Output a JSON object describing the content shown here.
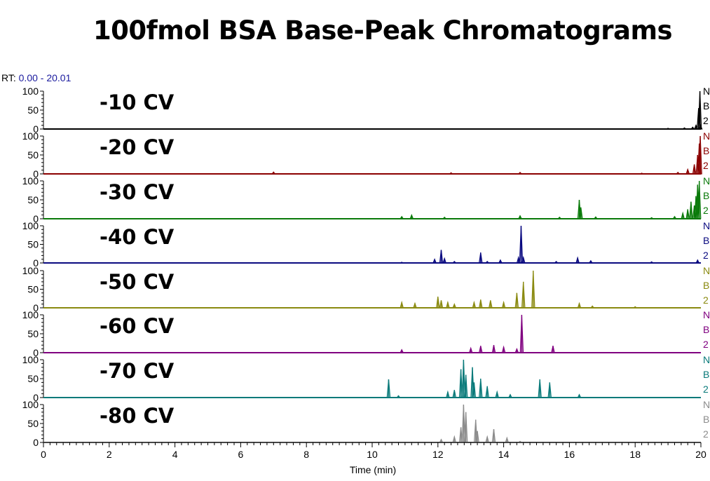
{
  "chart_data": {
    "type": "line",
    "title": "100fmol BSA Base-Peak Chromatograms",
    "rt_prefix": "RT:",
    "rt_range": "0.00 - 20.01",
    "xlabel": "Time (min)",
    "xlim": [
      0,
      20
    ],
    "x_ticks": [
      "0",
      "2",
      "4",
      "6",
      "8",
      "10",
      "12",
      "14",
      "16",
      "18",
      "20"
    ],
    "ylim": [
      0,
      100
    ],
    "y_ticks": [
      "0",
      "50",
      "100"
    ],
    "series": [
      {
        "name": "-10 CV",
        "color": "#000000",
        "side_labels": [
          "N",
          "B",
          "2"
        ],
        "peaks": [
          [
            19.0,
            2
          ],
          [
            19.5,
            3
          ],
          [
            19.75,
            5
          ],
          [
            19.85,
            10
          ],
          [
            19.93,
            55
          ],
          [
            19.97,
            100
          ],
          [
            19.99,
            10
          ]
        ]
      },
      {
        "name": "-20 CV",
        "color": "#8b0000",
        "side_labels": [
          "N",
          "B",
          "2"
        ],
        "peaks": [
          [
            7.0,
            5
          ],
          [
            12.4,
            3
          ],
          [
            14.5,
            4
          ],
          [
            18.2,
            2
          ],
          [
            19.3,
            4
          ],
          [
            19.6,
            12
          ],
          [
            19.8,
            25
          ],
          [
            19.9,
            50
          ],
          [
            19.95,
            80
          ],
          [
            19.98,
            100
          ]
        ]
      },
      {
        "name": "-30 CV",
        "color": "#0a7a0a",
        "side_labels": [
          "N",
          "B",
          "2"
        ],
        "peaks": [
          [
            10.9,
            6
          ],
          [
            11.2,
            10
          ],
          [
            12.2,
            4
          ],
          [
            14.5,
            8
          ],
          [
            15.7,
            4
          ],
          [
            16.3,
            50
          ],
          [
            16.35,
            30
          ],
          [
            16.8,
            5
          ],
          [
            18.5,
            3
          ],
          [
            19.2,
            6
          ],
          [
            19.45,
            15
          ],
          [
            19.6,
            25
          ],
          [
            19.7,
            45
          ],
          [
            19.8,
            35
          ],
          [
            19.85,
            60
          ],
          [
            19.9,
            90
          ],
          [
            19.95,
            100
          ]
        ]
      },
      {
        "name": "-40 CV",
        "color": "#0a0a80",
        "side_labels": [
          "N",
          "B",
          "2"
        ],
        "peaks": [
          [
            10.9,
            2
          ],
          [
            11.9,
            10
          ],
          [
            12.1,
            35
          ],
          [
            12.2,
            12
          ],
          [
            12.5,
            4
          ],
          [
            13.3,
            28
          ],
          [
            13.5,
            4
          ],
          [
            13.9,
            8
          ],
          [
            14.45,
            15
          ],
          [
            14.53,
            100
          ],
          [
            14.6,
            15
          ],
          [
            15.6,
            4
          ],
          [
            16.25,
            14
          ],
          [
            16.65,
            6
          ],
          [
            18.5,
            3
          ],
          [
            19.9,
            8
          ]
        ]
      },
      {
        "name": "-50 CV",
        "color": "#8a8a10",
        "side_labels": [
          "N",
          "B",
          "2"
        ],
        "peaks": [
          [
            10.9,
            15
          ],
          [
            11.3,
            12
          ],
          [
            12.0,
            30
          ],
          [
            12.1,
            20
          ],
          [
            12.3,
            15
          ],
          [
            12.5,
            10
          ],
          [
            13.1,
            15
          ],
          [
            13.3,
            22
          ],
          [
            13.6,
            20
          ],
          [
            14.0,
            15
          ],
          [
            14.4,
            40
          ],
          [
            14.6,
            70
          ],
          [
            14.9,
            100
          ],
          [
            16.3,
            12
          ],
          [
            16.7,
            5
          ],
          [
            18.0,
            3
          ]
        ]
      },
      {
        "name": "-60 CV",
        "color": "#800080",
        "side_labels": [
          "N",
          "B",
          "2"
        ],
        "peaks": [
          [
            10.9,
            8
          ],
          [
            13.0,
            12
          ],
          [
            13.3,
            18
          ],
          [
            13.7,
            20
          ],
          [
            14.0,
            15
          ],
          [
            14.4,
            10
          ],
          [
            14.55,
            100
          ],
          [
            15.5,
            18
          ]
        ]
      },
      {
        "name": "-70 CV",
        "color": "#0a7a7a",
        "side_labels": [
          "N",
          "B",
          "2"
        ],
        "peaks": [
          [
            10.5,
            48
          ],
          [
            10.8,
            5
          ],
          [
            12.3,
            15
          ],
          [
            12.5,
            20
          ],
          [
            12.7,
            75
          ],
          [
            12.78,
            100
          ],
          [
            12.85,
            60
          ],
          [
            13.05,
            80
          ],
          [
            13.1,
            40
          ],
          [
            13.3,
            50
          ],
          [
            13.5,
            30
          ],
          [
            13.8,
            15
          ],
          [
            14.2,
            8
          ],
          [
            15.1,
            48
          ],
          [
            15.4,
            40
          ],
          [
            16.3,
            8
          ]
        ]
      },
      {
        "name": "-80 CV",
        "color": "#8c8c8c",
        "side_labels": [
          "N",
          "B",
          "2"
        ],
        "peaks": [
          [
            12.1,
            8
          ],
          [
            12.5,
            15
          ],
          [
            12.7,
            40
          ],
          [
            12.78,
            100
          ],
          [
            12.85,
            80
          ],
          [
            13.15,
            60
          ],
          [
            13.2,
            30
          ],
          [
            13.5,
            15
          ],
          [
            13.7,
            35
          ],
          [
            14.1,
            12
          ],
          [
            14.5,
            3
          ]
        ]
      }
    ]
  }
}
